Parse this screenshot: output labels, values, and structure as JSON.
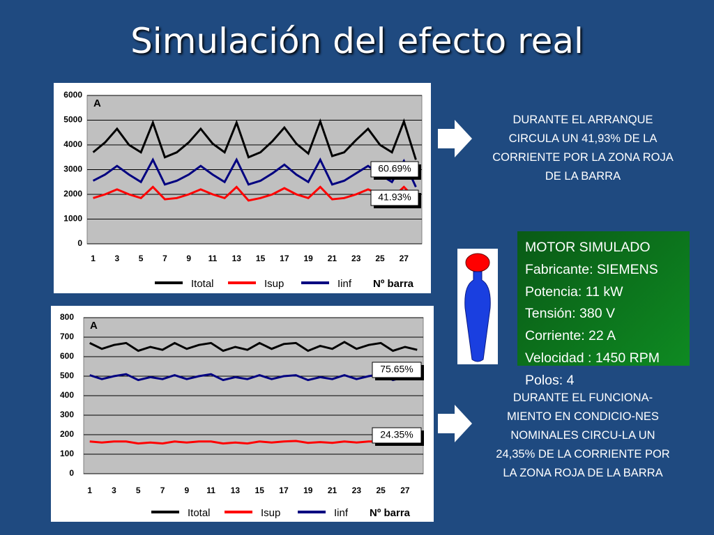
{
  "title": "Simulación del efecto real",
  "chart_data": [
    {
      "type": "line",
      "ylabel": "A",
      "xlabel": "Nº barra",
      "x": [
        1,
        2,
        3,
        4,
        5,
        6,
        7,
        8,
        9,
        10,
        11,
        12,
        13,
        14,
        15,
        16,
        17,
        18,
        19,
        20,
        21,
        22,
        23,
        24,
        25,
        26,
        27,
        28
      ],
      "xlim": [
        0.5,
        28.5
      ],
      "xticks": [
        1,
        3,
        5,
        7,
        9,
        11,
        13,
        15,
        17,
        19,
        21,
        23,
        25,
        27
      ],
      "ylim": [
        0,
        6000
      ],
      "yticks": [
        0,
        1000,
        2000,
        3000,
        4000,
        5000,
        6000
      ],
      "grid": true,
      "legend": "bottom",
      "series": [
        {
          "name": "Itotal",
          "color": "#000000",
          "values": [
            3700,
            4100,
            4650,
            4000,
            3700,
            4900,
            3500,
            3700,
            4100,
            4650,
            4050,
            3700,
            4900,
            3500,
            3700,
            4150,
            4700,
            4050,
            3650,
            4950,
            3550,
            3700,
            4200,
            4650,
            4000,
            3700,
            4950,
            3400
          ]
        },
        {
          "name": "Isup",
          "color": "#ff0000",
          "values": [
            1850,
            2000,
            2200,
            2000,
            1850,
            2300,
            1800,
            1850,
            2000,
            2200,
            2000,
            1850,
            2300,
            1750,
            1850,
            2000,
            2250,
            2000,
            1850,
            2300,
            1800,
            1850,
            2000,
            2200,
            2000,
            1850,
            2300,
            1800
          ]
        },
        {
          "name": "Iinf",
          "color": "#000080",
          "values": [
            2550,
            2800,
            3150,
            2800,
            2500,
            3400,
            2400,
            2550,
            2800,
            3150,
            2800,
            2500,
            3400,
            2400,
            2550,
            2850,
            3200,
            2800,
            2500,
            3400,
            2400,
            2550,
            2850,
            3150,
            2800,
            2500,
            3350,
            2300
          ]
        }
      ],
      "annotations": [
        "60.69%",
        "41.93%"
      ]
    },
    {
      "type": "line",
      "ylabel": "A",
      "xlabel": "Nº barra",
      "x": [
        1,
        2,
        3,
        4,
        5,
        6,
        7,
        8,
        9,
        10,
        11,
        12,
        13,
        14,
        15,
        16,
        17,
        18,
        19,
        20,
        21,
        22,
        23,
        24,
        25,
        26,
        27,
        28
      ],
      "xlim": [
        0.5,
        28.5
      ],
      "xticks": [
        1,
        3,
        5,
        7,
        9,
        11,
        13,
        15,
        17,
        19,
        21,
        23,
        25,
        27
      ],
      "ylim": [
        0,
        800
      ],
      "yticks": [
        0,
        100,
        200,
        300,
        400,
        500,
        600,
        700,
        800
      ],
      "grid": true,
      "legend": "bottom",
      "series": [
        {
          "name": "Itotal",
          "color": "#000000",
          "values": [
            670,
            640,
            660,
            670,
            630,
            650,
            635,
            670,
            640,
            660,
            670,
            630,
            650,
            635,
            670,
            640,
            665,
            670,
            630,
            655,
            640,
            675,
            640,
            660,
            670,
            630,
            650,
            635
          ]
        },
        {
          "name": "Isup",
          "color": "#ff0000",
          "values": [
            165,
            160,
            165,
            165,
            155,
            160,
            155,
            165,
            160,
            165,
            165,
            155,
            160,
            155,
            165,
            160,
            165,
            168,
            158,
            162,
            158,
            165,
            160,
            165,
            165,
            155,
            160,
            158
          ]
        },
        {
          "name": "Iinf",
          "color": "#000080",
          "values": [
            505,
            485,
            500,
            510,
            480,
            495,
            485,
            505,
            485,
            500,
            510,
            480,
            495,
            485,
            505,
            485,
            500,
            505,
            480,
            495,
            485,
            505,
            485,
            500,
            510,
            480,
            495,
            485
          ]
        }
      ],
      "annotations": [
        "75.65%",
        "24.35%"
      ]
    }
  ],
  "start_note": [
    "DURANTE EL ARRANQUE",
    "CIRCULA UN 41,93% DE LA",
    "CORRIENTE POR LA ZONA ROJA",
    "DE LA BARRA"
  ],
  "motor": [
    "MOTOR SIMULADO",
    "Fabricante: SIEMENS",
    "Potencia: 11 kW",
    "Tensión: 380 V",
    "Corriente: 22 A",
    "Velocidad : 1450 RPM",
    "Polos: 4"
  ],
  "run_note": [
    "DURANTE EL FUNCIONA-",
    "MIENTO EN CONDICIO-NES",
    "NOMINALES CIRCU-LA UN",
    "24,35% DE LA CORRIENTE POR",
    "LA ZONA ROJA DE LA BARRA"
  ]
}
